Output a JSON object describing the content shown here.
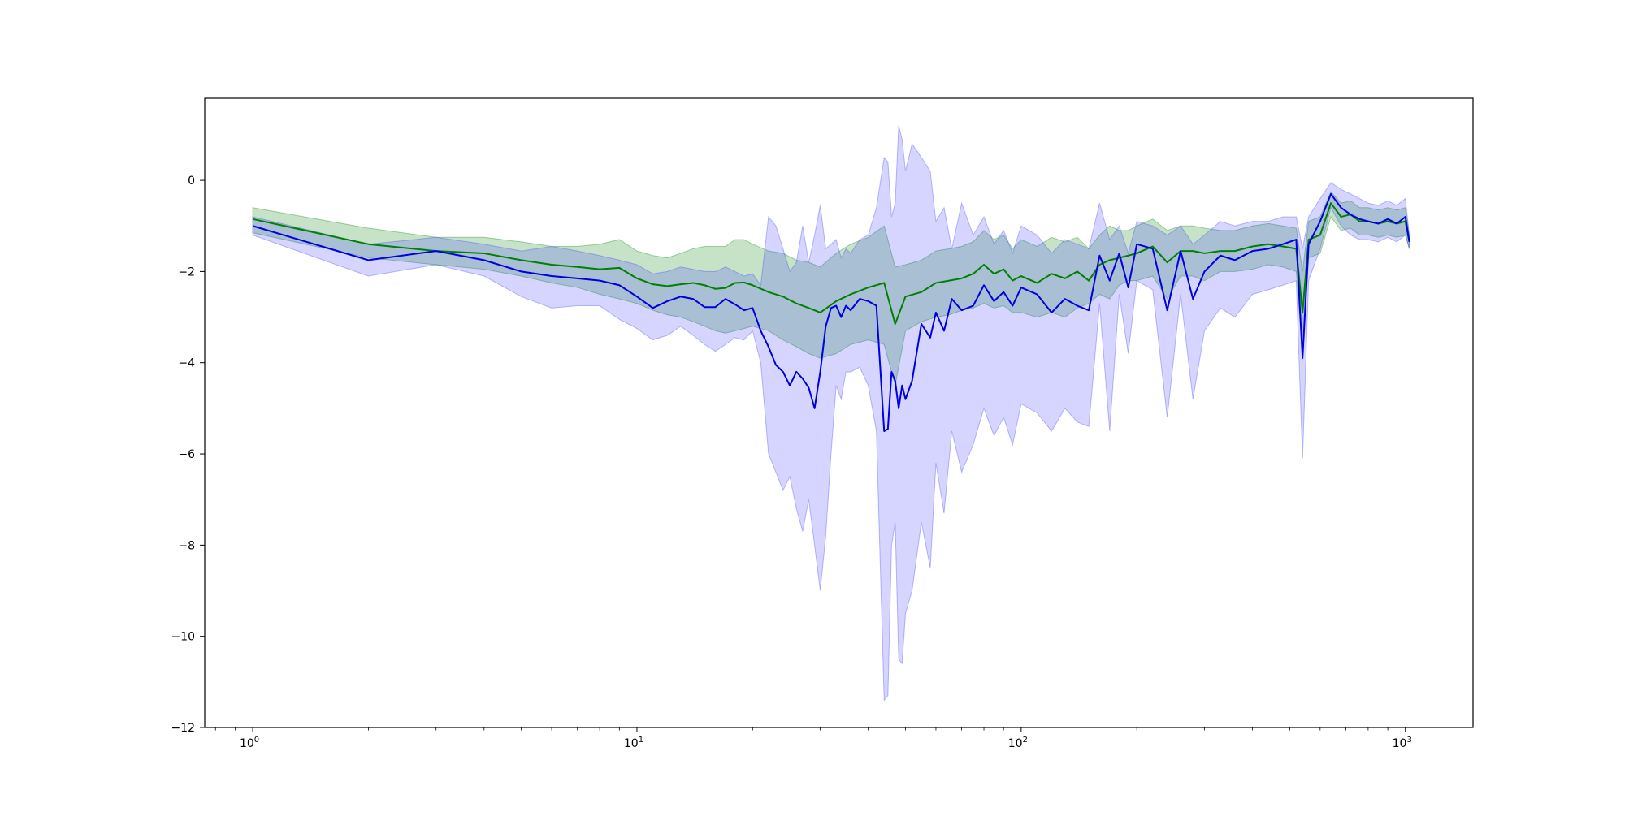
{
  "chart_data": {
    "type": "line",
    "title": "",
    "xlabel": "",
    "ylabel": "",
    "xscale": "log",
    "xlim": [
      0.75,
      1500
    ],
    "ylim": [
      -12,
      1.8
    ],
    "grid": false,
    "legend": "none",
    "y_ticks": [
      "0",
      "−2",
      "−4",
      "−6",
      "−8",
      "−10",
      "−12"
    ],
    "x_ticks": [
      {
        "base": "10",
        "exp": "0"
      },
      {
        "base": "10",
        "exp": "1"
      },
      {
        "base": "10",
        "exp": "2"
      },
      {
        "base": "10",
        "exp": "3"
      }
    ],
    "series": [
      {
        "color": "#008000",
        "band_color": "#008000",
        "x": [
          1,
          2,
          3,
          4,
          5,
          6,
          7,
          8,
          9,
          10,
          11,
          12,
          13,
          14,
          15,
          16,
          17,
          18,
          19,
          20,
          22,
          24,
          26,
          28,
          30,
          33,
          36,
          40,
          44,
          47,
          50,
          55,
          60,
          65,
          70,
          75,
          80,
          85,
          90,
          95,
          100,
          110,
          120,
          130,
          140,
          150,
          160,
          170,
          180,
          190,
          200,
          220,
          240,
          260,
          280,
          300,
          330,
          360,
          400,
          440,
          480,
          520,
          540,
          560,
          600,
          640,
          680,
          720,
          760,
          800,
          850,
          900,
          950,
          1000,
          1024
        ],
        "values": [
          -0.85,
          -1.4,
          -1.55,
          -1.6,
          -1.75,
          -1.85,
          -1.9,
          -1.95,
          -1.92,
          -2.15,
          -2.28,
          -2.32,
          -2.28,
          -2.25,
          -2.3,
          -2.38,
          -2.36,
          -2.25,
          -2.24,
          -2.3,
          -2.45,
          -2.55,
          -2.7,
          -2.8,
          -2.9,
          -2.65,
          -2.5,
          -2.35,
          -2.25,
          -3.15,
          -2.55,
          -2.45,
          -2.25,
          -2.2,
          -2.15,
          -2.05,
          -1.85,
          -2.05,
          -1.95,
          -2.2,
          -2.1,
          -2.25,
          -2.05,
          -2.15,
          -2.0,
          -2.2,
          -1.85,
          -1.75,
          -1.7,
          -1.65,
          -1.6,
          -1.45,
          -1.8,
          -1.55,
          -1.55,
          -1.6,
          -1.55,
          -1.55,
          -1.45,
          -1.4,
          -1.45,
          -1.5,
          -2.9,
          -1.3,
          -1.2,
          -0.5,
          -0.8,
          -0.75,
          -0.9,
          -0.9,
          -0.95,
          -0.9,
          -0.95,
          -0.9,
          -1.35
        ],
        "lower": [
          -1.15,
          -1.7,
          -1.85,
          -1.95,
          -2.1,
          -2.25,
          -2.35,
          -2.5,
          -2.6,
          -2.7,
          -2.85,
          -2.95,
          -3.0,
          -3.1,
          -3.2,
          -3.3,
          -3.35,
          -3.3,
          -3.25,
          -3.2,
          -3.3,
          -3.5,
          -3.65,
          -3.8,
          -3.9,
          -3.8,
          -3.6,
          -3.5,
          -3.6,
          -4.5,
          -3.3,
          -3.1,
          -3.0,
          -2.95,
          -2.85,
          -2.8,
          -2.7,
          -2.8,
          -2.75,
          -2.9,
          -2.9,
          -3.0,
          -2.9,
          -3.0,
          -2.8,
          -2.7,
          -2.5,
          -2.6,
          -2.3,
          -2.2,
          -2.2,
          -2.1,
          -2.6,
          -2.1,
          -2.1,
          -2.2,
          -2.0,
          -2.0,
          -1.95,
          -1.85,
          -1.9,
          -2.0,
          -3.8,
          -1.7,
          -1.6,
          -0.8,
          -1.1,
          -1.05,
          -1.2,
          -1.2,
          -1.25,
          -1.2,
          -1.25,
          -1.2,
          -1.5
        ],
        "upper": [
          -0.6,
          -1.05,
          -1.25,
          -1.25,
          -1.35,
          -1.45,
          -1.45,
          -1.4,
          -1.3,
          -1.55,
          -1.65,
          -1.7,
          -1.6,
          -1.5,
          -1.45,
          -1.45,
          -1.45,
          -1.3,
          -1.3,
          -1.4,
          -1.55,
          -1.6,
          -1.75,
          -1.8,
          -1.9,
          -1.6,
          -1.4,
          -1.25,
          -1.0,
          -1.9,
          -1.85,
          -1.75,
          -1.55,
          -1.5,
          -1.45,
          -1.35,
          -1.1,
          -1.3,
          -1.2,
          -1.5,
          -1.3,
          -1.45,
          -1.25,
          -1.35,
          -1.25,
          -1.5,
          -1.2,
          -1.0,
          -1.1,
          -1.1,
          -1.0,
          -0.85,
          -1.1,
          -1.0,
          -1.0,
          -1.05,
          -1.1,
          -1.1,
          -1.0,
          -0.95,
          -1.0,
          -1.05,
          -2.0,
          -0.9,
          -0.8,
          -0.25,
          -0.5,
          -0.45,
          -0.6,
          -0.6,
          -0.65,
          -0.6,
          -0.65,
          -0.6,
          -1.2
        ]
      },
      {
        "color": "#0000e0",
        "band_color": "#4040ff",
        "x": [
          1,
          2,
          3,
          4,
          5,
          6,
          7,
          8,
          9,
          10,
          11,
          12,
          13,
          14,
          15,
          16,
          17,
          18,
          19,
          20,
          21,
          22,
          23,
          24,
          25,
          26,
          27,
          28,
          29,
          30,
          31,
          32,
          33,
          34,
          35,
          36,
          38,
          40,
          42,
          44,
          45,
          46,
          47,
          48,
          49,
          50,
          52,
          55,
          58,
          60,
          63,
          66,
          70,
          75,
          80,
          85,
          90,
          95,
          100,
          110,
          120,
          130,
          140,
          150,
          160,
          170,
          180,
          190,
          200,
          220,
          240,
          260,
          280,
          300,
          330,
          360,
          400,
          440,
          480,
          520,
          540,
          560,
          600,
          640,
          680,
          720,
          760,
          800,
          850,
          900,
          950,
          1000,
          1024
        ],
        "values": [
          -1.0,
          -1.75,
          -1.55,
          -1.75,
          -2.0,
          -2.1,
          -2.15,
          -2.2,
          -2.3,
          -2.55,
          -2.8,
          -2.65,
          -2.55,
          -2.6,
          -2.78,
          -2.78,
          -2.6,
          -2.72,
          -2.85,
          -2.8,
          -3.3,
          -3.65,
          -4.05,
          -4.2,
          -4.5,
          -4.2,
          -4.35,
          -4.55,
          -5.0,
          -4.2,
          -3.2,
          -2.8,
          -2.75,
          -3.0,
          -2.75,
          -2.85,
          -2.6,
          -2.65,
          -2.75,
          -5.5,
          -5.45,
          -4.2,
          -4.4,
          -5.0,
          -4.5,
          -4.8,
          -4.4,
          -3.15,
          -3.45,
          -2.9,
          -3.3,
          -2.6,
          -2.85,
          -2.75,
          -2.3,
          -2.65,
          -2.45,
          -2.75,
          -2.35,
          -2.5,
          -2.9,
          -2.6,
          -2.75,
          -2.85,
          -1.65,
          -2.2,
          -1.6,
          -2.35,
          -1.4,
          -1.5,
          -2.85,
          -1.55,
          -2.6,
          -2.0,
          -1.65,
          -1.75,
          -1.55,
          -1.5,
          -1.4,
          -1.3,
          -3.9,
          -1.4,
          -0.9,
          -0.3,
          -0.6,
          -0.75,
          -0.85,
          -0.9,
          -0.95,
          -0.85,
          -0.95,
          -0.8,
          -1.35
        ],
        "lower": [
          -1.2,
          -2.1,
          -1.85,
          -2.1,
          -2.55,
          -2.8,
          -2.75,
          -2.75,
          -3.05,
          -3.25,
          -3.5,
          -3.4,
          -3.2,
          -3.4,
          -3.6,
          -3.75,
          -3.6,
          -3.45,
          -3.5,
          -3.3,
          -4.0,
          -6.0,
          -6.4,
          -6.8,
          -6.5,
          -7.2,
          -7.7,
          -7.0,
          -8.0,
          -9.0,
          -7.8,
          -6.0,
          -4.5,
          -4.8,
          -4.2,
          -4.2,
          -4.1,
          -4.5,
          -5.5,
          -11.4,
          -11.3,
          -8.0,
          -7.5,
          -10.5,
          -10.6,
          -9.5,
          -9.0,
          -7.5,
          -8.5,
          -6.2,
          -7.3,
          -5.5,
          -6.4,
          -5.8,
          -5.0,
          -5.6,
          -5.2,
          -5.8,
          -4.9,
          -5.1,
          -5.5,
          -5.0,
          -5.3,
          -5.4,
          -2.7,
          -5.5,
          -2.5,
          -3.8,
          -2.2,
          -2.4,
          -5.2,
          -2.5,
          -4.8,
          -3.3,
          -2.8,
          -3.0,
          -2.5,
          -2.4,
          -2.3,
          -2.2,
          -6.1,
          -2.2,
          -1.5,
          -0.6,
          -1.0,
          -1.2,
          -1.3,
          -1.3,
          -1.35,
          -1.25,
          -1.35,
          -1.2,
          -1.5
        ],
        "upper": [
          -0.8,
          -1.4,
          -1.25,
          -1.4,
          -1.55,
          -1.45,
          -1.55,
          -1.65,
          -1.75,
          -1.85,
          -2.05,
          -2.0,
          -1.9,
          -1.95,
          -2.0,
          -2.0,
          -1.9,
          -2.0,
          -2.1,
          -2.05,
          -2.3,
          -0.8,
          -1.0,
          -1.5,
          -2.0,
          -1.8,
          -1.0,
          -1.8,
          -1.2,
          -0.55,
          -1.5,
          -1.4,
          -1.3,
          -1.7,
          -1.5,
          -1.6,
          -1.3,
          -1.2,
          -0.6,
          0.5,
          0.4,
          -0.8,
          -0.5,
          1.2,
          0.9,
          0.2,
          0.8,
          0.5,
          0.2,
          -0.9,
          -0.6,
          -1.5,
          -0.5,
          -1.2,
          -0.8,
          -1.4,
          -1.1,
          -1.6,
          -1.0,
          -1.2,
          -1.6,
          -1.3,
          -1.4,
          -1.5,
          -0.5,
          -1.3,
          -1.0,
          -1.6,
          -0.9,
          -1.0,
          -1.2,
          -1.0,
          -1.4,
          -1.2,
          -0.9,
          -1.0,
          -0.9,
          -0.9,
          -0.8,
          -0.8,
          -1.5,
          -0.8,
          -0.4,
          -0.05,
          -0.2,
          -0.3,
          -0.4,
          -0.5,
          -0.55,
          -0.45,
          -0.55,
          -0.4,
          -1.2
        ]
      }
    ]
  }
}
